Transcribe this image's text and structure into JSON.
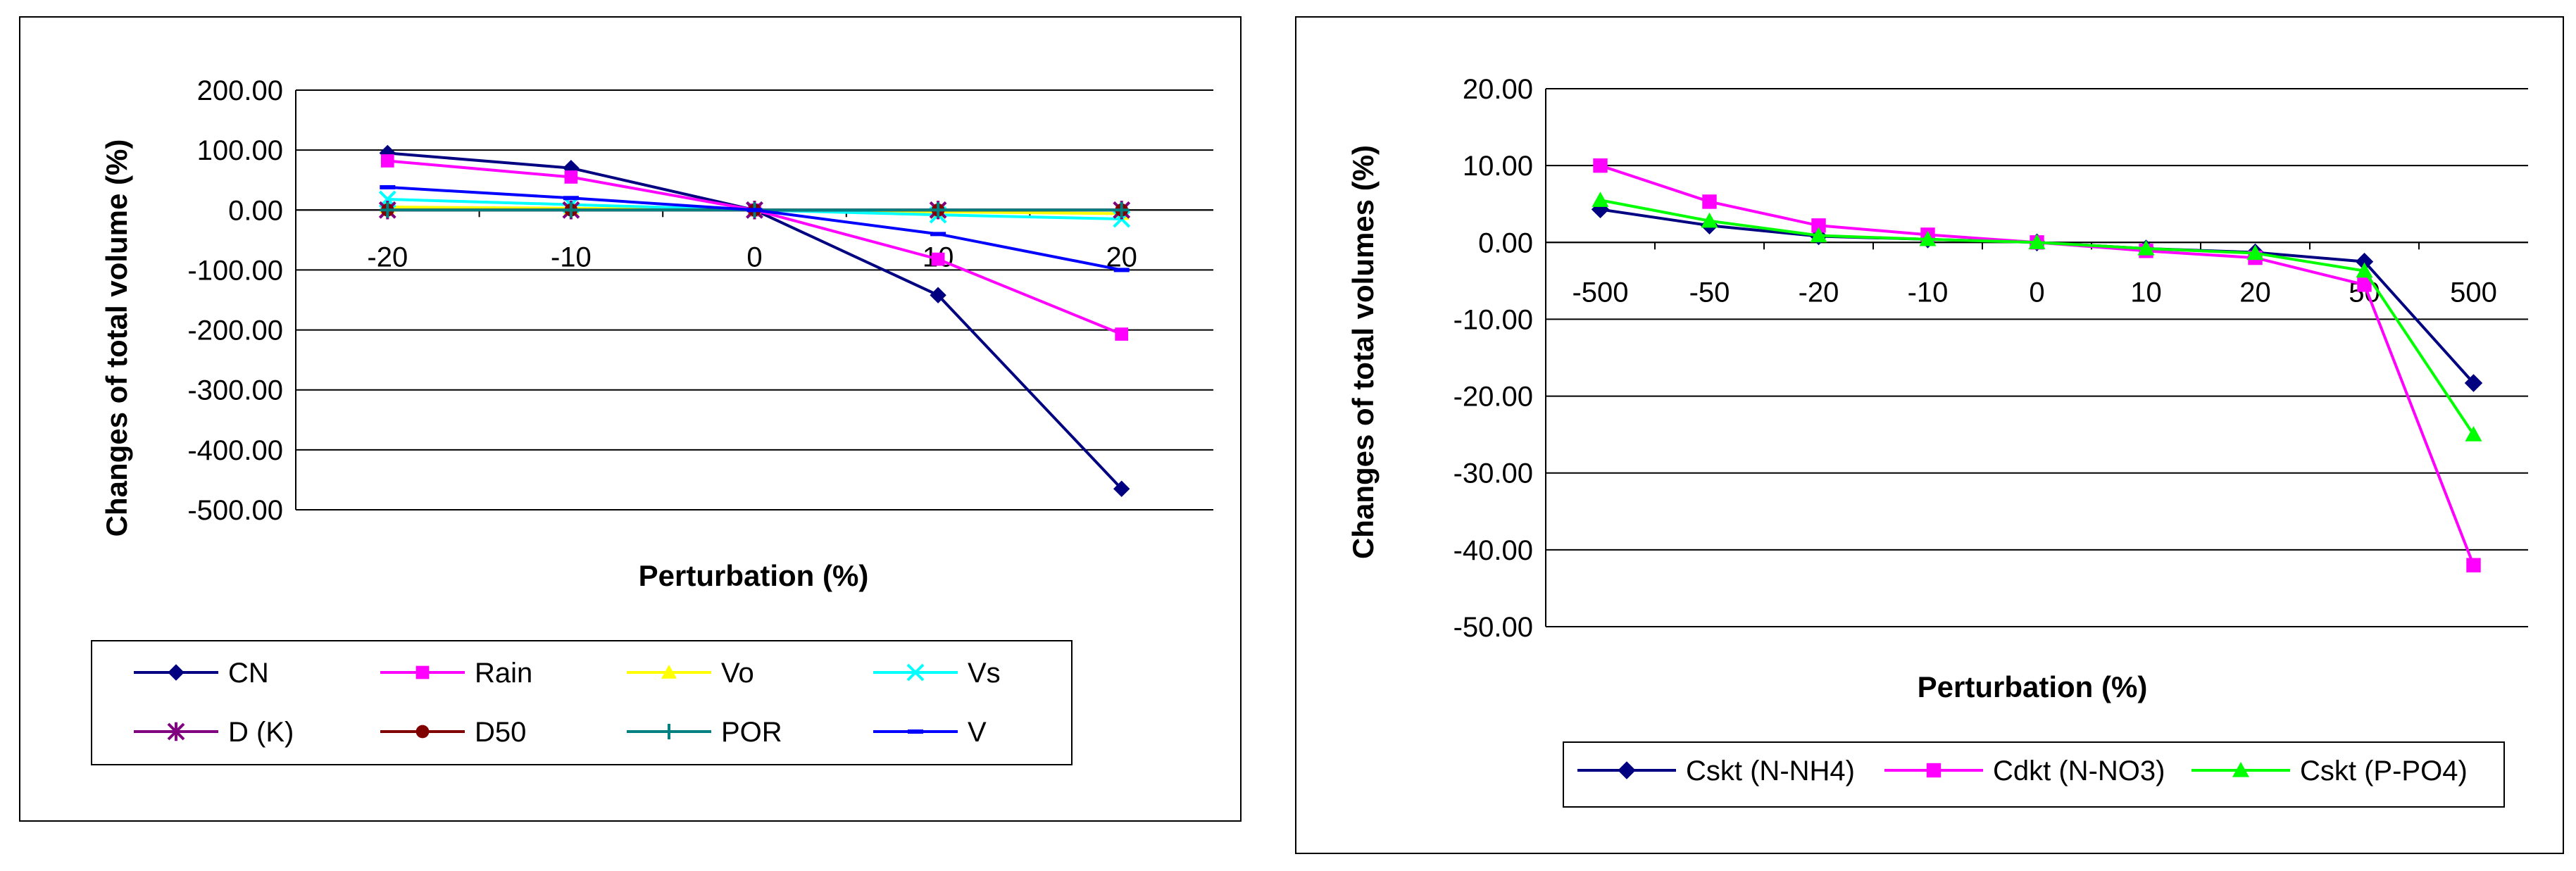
{
  "chart_data": [
    {
      "type": "line",
      "title": "",
      "xlabel": "Perturbation (%)",
      "ylabel": "Changes of total volume (%)",
      "categories": [
        "-20",
        "-10",
        "0",
        "10",
        "20"
      ],
      "ylim": [
        -500,
        200
      ],
      "yticks": [
        "200.00",
        "100.00",
        "0.00",
        "-100.00",
        "-200.00",
        "-300.00",
        "-400.00",
        "-500.00"
      ],
      "grid": true,
      "legend_position": "bottom",
      "series": [
        {
          "name": "CN",
          "color": "#000080",
          "marker": "diamond",
          "values": [
            95,
            70,
            0,
            -142,
            -465
          ]
        },
        {
          "name": "Rain",
          "color": "#ff00ff",
          "marker": "square",
          "values": [
            82,
            55,
            0,
            -82,
            -207
          ]
        },
        {
          "name": "Vo",
          "color": "#ffff00",
          "marker": "triangle",
          "values": [
            5,
            3,
            0,
            -3,
            -6
          ]
        },
        {
          "name": "Vs",
          "color": "#00ffff",
          "marker": "x",
          "values": [
            18,
            9,
            0,
            -8,
            -15
          ]
        },
        {
          "name": "D (K)",
          "color": "#800080",
          "marker": "star",
          "values": [
            0,
            0,
            0,
            0,
            0
          ]
        },
        {
          "name": "D50",
          "color": "#800000",
          "marker": "circle",
          "values": [
            0,
            0,
            0,
            0,
            0
          ]
        },
        {
          "name": "POR",
          "color": "#008080",
          "marker": "plus",
          "values": [
            0,
            0,
            0,
            0,
            0
          ]
        },
        {
          "name": "V",
          "color": "#0000ff",
          "marker": "dash",
          "values": [
            38,
            20,
            0,
            -40,
            -100
          ]
        }
      ]
    },
    {
      "type": "line",
      "title": "",
      "xlabel": "Perturbation (%)",
      "ylabel": "Changes of total volumes (%)",
      "categories": [
        "-500",
        "-50",
        "-20",
        "-10",
        "0",
        "10",
        "20",
        "50",
        "500"
      ],
      "ylim": [
        -50,
        20
      ],
      "yticks": [
        "20.00",
        "10.00",
        "0.00",
        "-10.00",
        "-20.00",
        "-30.00",
        "-40.00",
        "-50.00"
      ],
      "grid": true,
      "legend_position": "bottom",
      "series": [
        {
          "name": "Cskt (N-NH4)",
          "color": "#000080",
          "marker": "diamond",
          "values": [
            4.3,
            2.2,
            0.8,
            0.4,
            0,
            -0.8,
            -1.3,
            -2.5,
            -18.3
          ]
        },
        {
          "name": "Cdkt (N-NO3)",
          "color": "#ff00ff",
          "marker": "square",
          "values": [
            10,
            5.3,
            2.2,
            1,
            0,
            -1.1,
            -2,
            -5.5,
            -42
          ]
        },
        {
          "name": "Cskt (P-PO4)",
          "color": "#00ff00",
          "marker": "triangle",
          "values": [
            5.5,
            2.8,
            0.9,
            0.4,
            0,
            -0.8,
            -1.4,
            -3.7,
            -25
          ]
        }
      ]
    }
  ]
}
